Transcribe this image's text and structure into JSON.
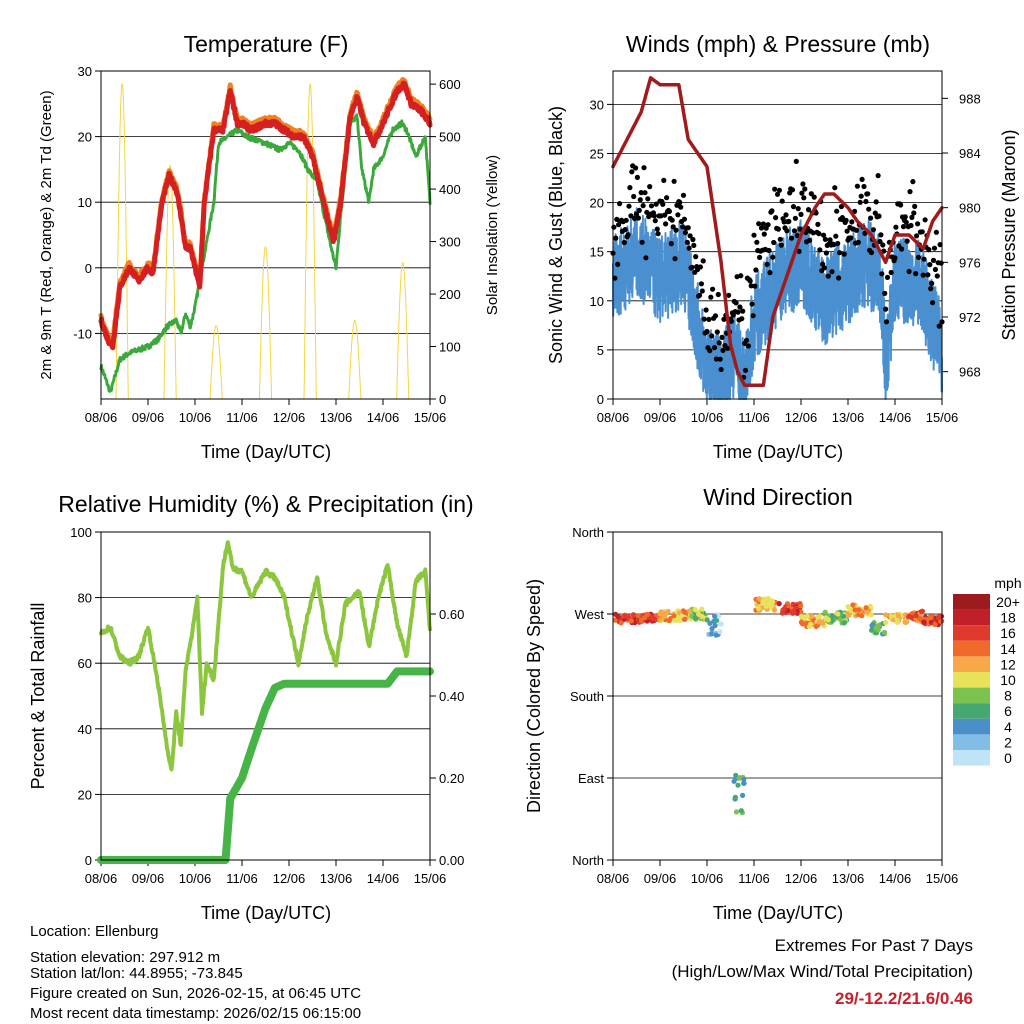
{
  "colors": {
    "temp": "#d42020",
    "temp_edge": "#f08020",
    "dewpoint": "#3aa83a",
    "solar": "#f4d640",
    "wind": "#4a90d0",
    "gust": "#000000",
    "pressure": "#a01c1c",
    "rh": "#8cc63f",
    "precip": "#46b446"
  },
  "chart_data": [
    {
      "type": "line",
      "title": "Temperature (F)",
      "xlabel": "Time (Day/UTC)",
      "ylabel": "2m & 9m T (Red, Orange) & 2m Td (Green)",
      "ylabel_right": "Solar Insolation (Yellow)",
      "xticks": [
        "08/06",
        "09/06",
        "10/06",
        "11/06",
        "12/06",
        "13/06",
        "14/06",
        "15/06"
      ],
      "xlim": [
        0,
        7
      ],
      "ylim": [
        -20,
        30
      ],
      "yticks": [
        -10,
        0,
        10,
        20,
        30
      ],
      "ylim_right": [
        0,
        625
      ],
      "yticks_right": [
        0,
        100,
        200,
        300,
        400,
        500,
        600
      ],
      "series": [
        {
          "name": "Temperature",
          "points": [
            [
              0,
              -8
            ],
            [
              0.15,
              -11
            ],
            [
              0.25,
              -12
            ],
            [
              0.4,
              -3
            ],
            [
              0.6,
              0
            ],
            [
              0.8,
              -2
            ],
            [
              1.0,
              0
            ],
            [
              1.1,
              -1
            ],
            [
              1.3,
              10
            ],
            [
              1.45,
              14
            ],
            [
              1.6,
              12
            ],
            [
              1.7,
              8
            ],
            [
              1.8,
              3
            ],
            [
              1.9,
              3
            ],
            [
              2.0,
              0
            ],
            [
              2.1,
              -3
            ],
            [
              2.2,
              10
            ],
            [
              2.4,
              21
            ],
            [
              2.6,
              21
            ],
            [
              2.75,
              27
            ],
            [
              2.9,
              22
            ],
            [
              3.0,
              22
            ],
            [
              3.2,
              21
            ],
            [
              3.5,
              22
            ],
            [
              3.7,
              22
            ],
            [
              3.9,
              21
            ],
            [
              4.1,
              20
            ],
            [
              4.3,
              20
            ],
            [
              4.5,
              17
            ],
            [
              4.8,
              8
            ],
            [
              4.95,
              4
            ],
            [
              5.1,
              10
            ],
            [
              5.3,
              23
            ],
            [
              5.45,
              26
            ],
            [
              5.6,
              22
            ],
            [
              5.8,
              19
            ],
            [
              6.0,
              22
            ],
            [
              6.3,
              27
            ],
            [
              6.45,
              28
            ],
            [
              6.6,
              25
            ],
            [
              6.8,
              24
            ],
            [
              7.0,
              22
            ]
          ]
        },
        {
          "name": "Dewpoint",
          "points": [
            [
              0,
              -15
            ],
            [
              0.1,
              -17
            ],
            [
              0.2,
              -19
            ],
            [
              0.4,
              -14
            ],
            [
              0.6,
              -13
            ],
            [
              1.0,
              -12
            ],
            [
              1.2,
              -11
            ],
            [
              1.4,
              -9
            ],
            [
              1.6,
              -8
            ],
            [
              1.7,
              -10
            ],
            [
              1.8,
              -7
            ],
            [
              1.9,
              -9
            ],
            [
              2.0,
              -6
            ],
            [
              2.2,
              2
            ],
            [
              2.4,
              10
            ],
            [
              2.5,
              19
            ],
            [
              2.7,
              20
            ],
            [
              2.9,
              21
            ],
            [
              3.1,
              20
            ],
            [
              3.5,
              19
            ],
            [
              3.8,
              18
            ],
            [
              4.0,
              19
            ],
            [
              4.2,
              18
            ],
            [
              4.4,
              15
            ],
            [
              4.6,
              13
            ],
            [
              4.9,
              3
            ],
            [
              5.0,
              0
            ],
            [
              5.1,
              8
            ],
            [
              5.3,
              22
            ],
            [
              5.45,
              23
            ],
            [
              5.55,
              15
            ],
            [
              5.7,
              10
            ],
            [
              5.8,
              15
            ],
            [
              6.0,
              17
            ],
            [
              6.2,
              21
            ],
            [
              6.4,
              22
            ],
            [
              6.5,
              21
            ],
            [
              6.7,
              17
            ],
            [
              6.9,
              20
            ],
            [
              7.0,
              10
            ]
          ]
        },
        {
          "name": "Solar",
          "peaks": [
            [
              0.45,
              600
            ],
            [
              1.47,
              445
            ],
            [
              2.45,
              140
            ],
            [
              3.5,
              290
            ],
            [
              4.45,
              600
            ],
            [
              5.4,
              150
            ],
            [
              6.42,
              260
            ]
          ]
        }
      ]
    },
    {
      "type": "line",
      "title": "Winds (mph) & Pressure (mb)",
      "xlabel": "Time (Day/UTC)",
      "ylabel": "Sonic Wind & Gust (Blue, Black)",
      "ylabel_right": "Station Pressure (Maroon)",
      "xticks": [
        "08/06",
        "09/06",
        "10/06",
        "11/06",
        "12/06",
        "13/06",
        "14/06",
        "15/06"
      ],
      "xlim": [
        0,
        7
      ],
      "ylim": [
        0,
        33.4
      ],
      "yticks": [
        0,
        5,
        10,
        15,
        20,
        25,
        30
      ],
      "ylim_right": [
        966,
        990
      ],
      "yticks_right": [
        968,
        972,
        976,
        980,
        984,
        988
      ],
      "series": [
        {
          "name": "Wind",
          "points": [
            [
              0,
              12
            ],
            [
              0.5,
              15
            ],
            [
              1,
              12
            ],
            [
              1.5,
              14
            ],
            [
              2.0,
              3
            ],
            [
              2.3,
              2
            ],
            [
              2.6,
              5
            ],
            [
              2.8,
              1
            ],
            [
              3.0,
              8
            ],
            [
              3.5,
              12
            ],
            [
              4.0,
              14
            ],
            [
              4.5,
              10
            ],
            [
              5.0,
              12
            ],
            [
              5.4,
              14
            ],
            [
              5.7,
              12
            ],
            [
              5.8,
              3
            ],
            [
              6.0,
              12
            ],
            [
              6.5,
              12
            ],
            [
              7,
              5
            ]
          ]
        },
        {
          "name": "Gust",
          "offset": 6
        },
        {
          "name": "Pressure",
          "points": [
            [
              0,
              983
            ],
            [
              0.3,
              985
            ],
            [
              0.6,
              987
            ],
            [
              0.8,
              989.5
            ],
            [
              1.0,
              989
            ],
            [
              1.4,
              989
            ],
            [
              1.6,
              985
            ],
            [
              2.0,
              983
            ],
            [
              2.3,
              976
            ],
            [
              2.5,
              970
            ],
            [
              2.65,
              968
            ],
            [
              2.8,
              967
            ],
            [
              3.0,
              967
            ],
            [
              3.2,
              967
            ],
            [
              3.4,
              972
            ],
            [
              3.7,
              975
            ],
            [
              4.0,
              978
            ],
            [
              4.3,
              980
            ],
            [
              4.5,
              981
            ],
            [
              4.7,
              981
            ],
            [
              5.0,
              980
            ],
            [
              5.2,
              979
            ],
            [
              5.5,
              978
            ],
            [
              5.8,
              976
            ],
            [
              6.0,
              978
            ],
            [
              6.3,
              978
            ],
            [
              6.6,
              977
            ],
            [
              6.8,
              979
            ],
            [
              7,
              980
            ]
          ]
        }
      ]
    },
    {
      "type": "line",
      "title": "Relative Humidity (%) & Precipitation (in)",
      "xlabel": "Time (Day/UTC)",
      "ylabel": "Percent & Total Rainfall",
      "xticks": [
        "08/06",
        "09/06",
        "10/06",
        "11/06",
        "12/06",
        "13/06",
        "14/06",
        "15/06"
      ],
      "xlim": [
        0,
        7
      ],
      "ylim": [
        0,
        100
      ],
      "yticks": [
        0,
        20,
        40,
        60,
        80,
        100
      ],
      "ylim_right": [
        0,
        0.8
      ],
      "yticks_right": [
        "0.00",
        "0.20",
        "0.40",
        "0.60"
      ],
      "series": [
        {
          "name": "RH",
          "points": [
            [
              0,
              69
            ],
            [
              0.2,
              71
            ],
            [
              0.4,
              62
            ],
            [
              0.6,
              60
            ],
            [
              0.8,
              62
            ],
            [
              1.0,
              71
            ],
            [
              1.2,
              55
            ],
            [
              1.4,
              35
            ],
            [
              1.5,
              27
            ],
            [
              1.6,
              45
            ],
            [
              1.7,
              35
            ],
            [
              1.8,
              58
            ],
            [
              1.95,
              70
            ],
            [
              2.05,
              80
            ],
            [
              2.15,
              45
            ],
            [
              2.25,
              60
            ],
            [
              2.4,
              55
            ],
            [
              2.6,
              90
            ],
            [
              2.7,
              97
            ],
            [
              2.8,
              89
            ],
            [
              3.0,
              88
            ],
            [
              3.2,
              80
            ],
            [
              3.5,
              88
            ],
            [
              3.7,
              86
            ],
            [
              3.9,
              80
            ],
            [
              4.2,
              60
            ],
            [
              4.4,
              75
            ],
            [
              4.6,
              86
            ],
            [
              4.8,
              68
            ],
            [
              5.0,
              60
            ],
            [
              5.2,
              78
            ],
            [
              5.5,
              82
            ],
            [
              5.7,
              65
            ],
            [
              5.9,
              80
            ],
            [
              6.1,
              90
            ],
            [
              6.3,
              72
            ],
            [
              6.5,
              62
            ],
            [
              6.7,
              85
            ],
            [
              6.9,
              88
            ],
            [
              7,
              70
            ]
          ]
        },
        {
          "name": "Precipitation",
          "points": [
            [
              0,
              0
            ],
            [
              2.65,
              0
            ],
            [
              2.75,
              0.15
            ],
            [
              2.85,
              0.17
            ],
            [
              3.0,
              0.2
            ],
            [
              3.2,
              0.27
            ],
            [
              3.5,
              0.37
            ],
            [
              3.7,
              0.42
            ],
            [
              3.9,
              0.43
            ],
            [
              6.1,
              0.43
            ],
            [
              6.3,
              0.46
            ],
            [
              7,
              0.46
            ]
          ]
        }
      ]
    },
    {
      "type": "scatter",
      "title": "Wind Direction",
      "xlabel": "Time (Day/UTC)",
      "ylabel": "Direction (Colored By Speed)",
      "xticks": [
        "08/06",
        "09/06",
        "10/06",
        "11/06",
        "12/06",
        "13/06",
        "14/06",
        "15/06"
      ],
      "xlim": [
        0,
        7
      ],
      "ylim": [
        0,
        360
      ],
      "yticks": [
        {
          "v": 0,
          "label": "North"
        },
        {
          "v": 90,
          "label": "East"
        },
        {
          "v": 180,
          "label": "South"
        },
        {
          "v": 270,
          "label": "West"
        },
        {
          "v": 360,
          "label": "North"
        }
      ],
      "clusters": [
        [
          0,
          1.0,
          265,
          5,
          16
        ],
        [
          1.0,
          1.6,
          268,
          6,
          12
        ],
        [
          1.6,
          2.0,
          270,
          6,
          9
        ],
        [
          2.0,
          2.3,
          258,
          12,
          3
        ],
        [
          2.55,
          2.8,
          75,
          25,
          6
        ],
        [
          3.0,
          3.5,
          280,
          8,
          12
        ],
        [
          3.5,
          4.0,
          276,
          6,
          16
        ],
        [
          4.0,
          4.5,
          262,
          6,
          12
        ],
        [
          4.5,
          5.0,
          266,
          6,
          8
        ],
        [
          5.0,
          5.5,
          274,
          6,
          12
        ],
        [
          5.5,
          5.8,
          255,
          8,
          7
        ],
        [
          5.8,
          6.3,
          265,
          5,
          12
        ],
        [
          6.3,
          6.6,
          268,
          6,
          14
        ],
        [
          6.6,
          7.0,
          263,
          5,
          16
        ]
      ],
      "legend": {
        "title": "mph",
        "labels": [
          "20+",
          "18",
          "16",
          "14",
          "12",
          "10",
          "8",
          "6",
          "4",
          "2",
          "0"
        ],
        "colors": [
          "#9b1b1e",
          "#c0202a",
          "#e03a2c",
          "#f06a2c",
          "#f7a848",
          "#e8e25a",
          "#7cc24e",
          "#45a870",
          "#4a8fc8",
          "#82bde6",
          "#bfe3f7"
        ]
      }
    }
  ],
  "footer": {
    "location": "Location: Ellenburg",
    "elevation": "Station elevation: 297.912 m",
    "latlon": "Station lat/lon: 44.8955; -73.845",
    "created": "Figure created on Sun, 2026-02-15, at 06:45 UTC",
    "recent": "Most recent data timestamp: 2026/02/15 06:15:00"
  },
  "extremes": {
    "heading": "Extremes For Past 7 Days",
    "subheading": "(High/Low/Max Wind/Total Precipitation)",
    "values": "29/-12.2/21.6/0.46"
  }
}
